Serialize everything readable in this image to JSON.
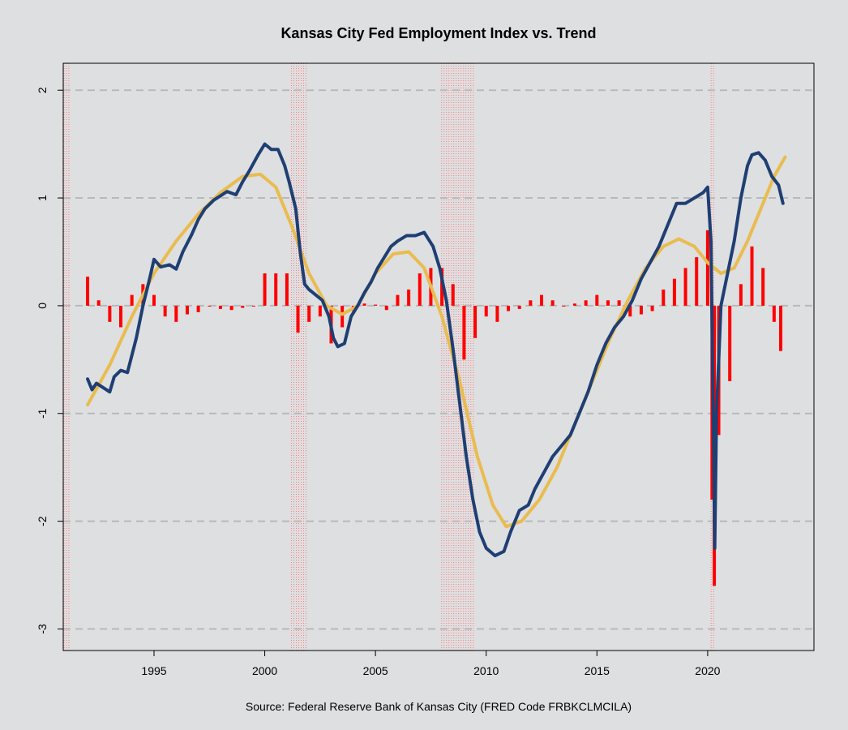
{
  "chart_data": {
    "type": "line",
    "title": "Kansas City Fed Employment Index vs. Trend",
    "source": "Source: Federal Reserve Bank of Kansas City (FRED Code FRBKCLMCILA)",
    "xlabel": "",
    "ylabel": "",
    "xlim": [
      1990.9,
      2024.8
    ],
    "ylim": [
      -3.2,
      2.25
    ],
    "x_ticks": [
      1995,
      2000,
      2005,
      2010,
      2015,
      2020
    ],
    "x_tick_labels": [
      "1995",
      "2000",
      "2005",
      "2010",
      "2015",
      "2020"
    ],
    "y_ticks": [
      -3,
      -2,
      -1,
      0,
      1,
      2
    ],
    "y_tick_labels": [
      "-3",
      "-2",
      "-1",
      "0",
      "1",
      "2"
    ],
    "gridlines": "horizontal dashed",
    "recessions": [
      [
        1990.9,
        1991.25
      ],
      [
        2001.17,
        2001.9
      ],
      [
        2007.95,
        2009.5
      ],
      [
        2020.12,
        2020.3
      ]
    ],
    "series": [
      {
        "color": "#1f3f73",
        "values": [
          [
            1992.0,
            -0.68
          ],
          [
            1992.2,
            -0.78
          ],
          [
            1992.4,
            -0.72
          ],
          [
            1992.7,
            -0.76
          ],
          [
            1993.0,
            -0.8
          ],
          [
            1993.2,
            -0.66
          ],
          [
            1993.5,
            -0.6
          ],
          [
            1993.8,
            -0.62
          ],
          [
            1994.2,
            -0.3
          ],
          [
            1994.5,
            0.0
          ],
          [
            1994.8,
            0.25
          ],
          [
            1995.0,
            0.43
          ],
          [
            1995.3,
            0.36
          ],
          [
            1995.7,
            0.38
          ],
          [
            1996.0,
            0.34
          ],
          [
            1996.3,
            0.5
          ],
          [
            1996.7,
            0.66
          ],
          [
            1997.0,
            0.8
          ],
          [
            1997.3,
            0.9
          ],
          [
            1997.7,
            0.98
          ],
          [
            1998.0,
            1.02
          ],
          [
            1998.3,
            1.06
          ],
          [
            1998.7,
            1.03
          ],
          [
            1999.0,
            1.15
          ],
          [
            1999.3,
            1.25
          ],
          [
            1999.7,
            1.4
          ],
          [
            2000.0,
            1.5
          ],
          [
            2000.3,
            1.45
          ],
          [
            2000.6,
            1.45
          ],
          [
            2000.9,
            1.3
          ],
          [
            2001.1,
            1.15
          ],
          [
            2001.4,
            0.9
          ],
          [
            2001.6,
            0.5
          ],
          [
            2001.8,
            0.2
          ],
          [
            2002.0,
            0.15
          ],
          [
            2002.3,
            0.1
          ],
          [
            2002.6,
            0.05
          ],
          [
            2002.9,
            -0.1
          ],
          [
            2003.1,
            -0.3
          ],
          [
            2003.3,
            -0.38
          ],
          [
            2003.6,
            -0.35
          ],
          [
            2003.9,
            -0.1
          ],
          [
            2004.2,
            0.0
          ],
          [
            2004.5,
            0.12
          ],
          [
            2004.8,
            0.22
          ],
          [
            2005.1,
            0.35
          ],
          [
            2005.4,
            0.45
          ],
          [
            2005.7,
            0.55
          ],
          [
            2006.0,
            0.6
          ],
          [
            2006.4,
            0.65
          ],
          [
            2006.8,
            0.65
          ],
          [
            2007.2,
            0.68
          ],
          [
            2007.6,
            0.55
          ],
          [
            2007.9,
            0.35
          ],
          [
            2008.2,
            0.05
          ],
          [
            2008.5,
            -0.4
          ],
          [
            2008.8,
            -0.9
          ],
          [
            2009.1,
            -1.4
          ],
          [
            2009.4,
            -1.8
          ],
          [
            2009.7,
            -2.1
          ],
          [
            2010.0,
            -2.25
          ],
          [
            2010.4,
            -2.32
          ],
          [
            2010.8,
            -2.28
          ],
          [
            2011.1,
            -2.1
          ],
          [
            2011.5,
            -1.9
          ],
          [
            2011.9,
            -1.85
          ],
          [
            2012.2,
            -1.7
          ],
          [
            2012.6,
            -1.55
          ],
          [
            2013.0,
            -1.4
          ],
          [
            2013.4,
            -1.3
          ],
          [
            2013.8,
            -1.2
          ],
          [
            2014.2,
            -1.0
          ],
          [
            2014.6,
            -0.8
          ],
          [
            2015.0,
            -0.55
          ],
          [
            2015.4,
            -0.35
          ],
          [
            2015.8,
            -0.2
          ],
          [
            2016.2,
            -0.1
          ],
          [
            2016.6,
            0.05
          ],
          [
            2017.0,
            0.25
          ],
          [
            2017.4,
            0.4
          ],
          [
            2017.8,
            0.55
          ],
          [
            2018.2,
            0.75
          ],
          [
            2018.6,
            0.95
          ],
          [
            2019.0,
            0.95
          ],
          [
            2019.4,
            1.0
          ],
          [
            2019.8,
            1.05
          ],
          [
            2020.0,
            1.1
          ],
          [
            2020.15,
            0.6
          ],
          [
            2020.25,
            -1.0
          ],
          [
            2020.32,
            -2.25
          ],
          [
            2020.4,
            -1.0
          ],
          [
            2020.6,
            0.0
          ],
          [
            2020.9,
            0.3
          ],
          [
            2021.2,
            0.6
          ],
          [
            2021.5,
            1.0
          ],
          [
            2021.8,
            1.3
          ],
          [
            2022.0,
            1.4
          ],
          [
            2022.3,
            1.42
          ],
          [
            2022.6,
            1.35
          ],
          [
            2022.9,
            1.2
          ],
          [
            2023.2,
            1.12
          ],
          [
            2023.4,
            0.95
          ]
        ]
      },
      {
        "color": "#e9bc50",
        "values": [
          [
            1992.0,
            -0.92
          ],
          [
            1993.0,
            -0.55
          ],
          [
            1994.0,
            -0.1
          ],
          [
            1995.0,
            0.3
          ],
          [
            1996.0,
            0.6
          ],
          [
            1997.0,
            0.85
          ],
          [
            1998.0,
            1.05
          ],
          [
            1999.0,
            1.2
          ],
          [
            1999.8,
            1.22
          ],
          [
            2000.5,
            1.1
          ],
          [
            2001.2,
            0.75
          ],
          [
            2002.0,
            0.3
          ],
          [
            2002.8,
            0.0
          ],
          [
            2003.5,
            -0.08
          ],
          [
            2004.2,
            0.0
          ],
          [
            2005.0,
            0.3
          ],
          [
            2005.8,
            0.48
          ],
          [
            2006.5,
            0.5
          ],
          [
            2007.2,
            0.35
          ],
          [
            2008.0,
            -0.1
          ],
          [
            2008.8,
            -0.7
          ],
          [
            2009.6,
            -1.4
          ],
          [
            2010.3,
            -1.85
          ],
          [
            2010.9,
            -2.05
          ],
          [
            2011.6,
            -2.0
          ],
          [
            2012.4,
            -1.8
          ],
          [
            2013.2,
            -1.5
          ],
          [
            2014.0,
            -1.1
          ],
          [
            2014.8,
            -0.7
          ],
          [
            2015.6,
            -0.3
          ],
          [
            2016.4,
            0.05
          ],
          [
            2017.2,
            0.35
          ],
          [
            2018.0,
            0.55
          ],
          [
            2018.7,
            0.62
          ],
          [
            2019.4,
            0.55
          ],
          [
            2020.0,
            0.4
          ],
          [
            2020.6,
            0.3
          ],
          [
            2021.2,
            0.35
          ],
          [
            2021.8,
            0.6
          ],
          [
            2022.5,
            0.95
          ],
          [
            2023.0,
            1.2
          ],
          [
            2023.5,
            1.38
          ]
        ]
      },
      {
        "type": "bar",
        "color": "#ff0000",
        "values": [
          [
            1992.0,
            0.27
          ],
          [
            1992.5,
            0.05
          ],
          [
            1993.0,
            -0.15
          ],
          [
            1993.5,
            -0.2
          ],
          [
            1994.0,
            0.1
          ],
          [
            1994.5,
            0.2
          ],
          [
            1995.0,
            0.1
          ],
          [
            1995.5,
            -0.1
          ],
          [
            1996.0,
            -0.15
          ],
          [
            1996.5,
            -0.08
          ],
          [
            1997.0,
            -0.06
          ],
          [
            1997.5,
            0.0
          ],
          [
            1998.0,
            -0.03
          ],
          [
            1998.5,
            -0.04
          ],
          [
            1999.0,
            -0.02
          ],
          [
            1999.5,
            0.0
          ],
          [
            2000.0,
            0.3
          ],
          [
            2000.5,
            0.3
          ],
          [
            2001.0,
            0.3
          ],
          [
            2001.5,
            -0.25
          ],
          [
            2002.0,
            -0.15
          ],
          [
            2002.5,
            -0.1
          ],
          [
            2003.0,
            -0.35
          ],
          [
            2003.5,
            -0.2
          ],
          [
            2004.0,
            -0.05
          ],
          [
            2004.5,
            0.02
          ],
          [
            2005.0,
            0.01
          ],
          [
            2005.5,
            -0.04
          ],
          [
            2006.0,
            0.1
          ],
          [
            2006.5,
            0.15
          ],
          [
            2007.0,
            0.3
          ],
          [
            2007.5,
            0.35
          ],
          [
            2008.0,
            0.35
          ],
          [
            2008.5,
            0.2
          ],
          [
            2009.0,
            -0.5
          ],
          [
            2009.5,
            -0.3
          ],
          [
            2010.0,
            -0.1
          ],
          [
            2010.5,
            -0.15
          ],
          [
            2011.0,
            -0.05
          ],
          [
            2011.5,
            -0.03
          ],
          [
            2012.0,
            0.05
          ],
          [
            2012.5,
            0.1
          ],
          [
            2013.0,
            0.05
          ],
          [
            2013.5,
            0.0
          ],
          [
            2014.0,
            0.02
          ],
          [
            2014.5,
            0.05
          ],
          [
            2015.0,
            0.1
          ],
          [
            2015.5,
            0.05
          ],
          [
            2016.0,
            0.05
          ],
          [
            2016.5,
            -0.1
          ],
          [
            2017.0,
            -0.08
          ],
          [
            2017.5,
            -0.05
          ],
          [
            2018.0,
            0.15
          ],
          [
            2018.5,
            0.25
          ],
          [
            2019.0,
            0.35
          ],
          [
            2019.5,
            0.45
          ],
          [
            2020.0,
            0.7
          ],
          [
            2020.2,
            -1.8
          ],
          [
            2020.3,
            -2.6
          ],
          [
            2020.5,
            -1.2
          ],
          [
            2021.0,
            -0.7
          ],
          [
            2021.5,
            0.2
          ],
          [
            2022.0,
            0.55
          ],
          [
            2022.5,
            0.35
          ],
          [
            2023.0,
            -0.15
          ],
          [
            2023.3,
            -0.42
          ]
        ]
      }
    ]
  }
}
